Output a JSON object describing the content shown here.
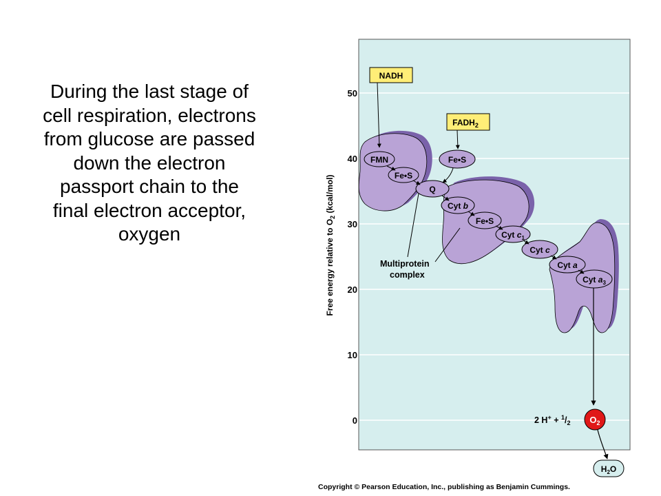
{
  "slide": {
    "lines": [
      "During the last stage of",
      "cell respiration, electrons",
      "from glucose are passed",
      "down the electron",
      "passport chain to the",
      "final electron acceptor,",
      "oxygen"
    ]
  },
  "diagram": {
    "y_axis": {
      "title_main": "Free energy relative to O",
      "title_sub": "2",
      "title_unit": " (kcal/mol)",
      "ticks": [
        "50",
        "40",
        "30",
        "20",
        "10",
        "0"
      ]
    },
    "boxes": {
      "nadh": "NADH",
      "fadh_main": "FADH",
      "fadh_sub": "2"
    },
    "carriers": {
      "fmn": "FMN",
      "fes1": "Fe•S",
      "fes_fad": "Fe•S",
      "q": "Q",
      "cyt_b_prefix": "Cyt ",
      "cyt_b_letter": "b",
      "fes2": "Fe•S",
      "cyt_c1_prefix": "Cyt ",
      "cyt_c1_letter": "c",
      "cyt_c1_sub": "1",
      "cyt_c_prefix": "Cyt ",
      "cyt_c_letter": "c",
      "cyt_a_prefix": "Cyt ",
      "cyt_a_letter": "a",
      "cyt_a3_prefix": "Cyt ",
      "cyt_a3_letter": "a",
      "cyt_a3_sub": "3"
    },
    "multiprotein_line1": "Multiprotein",
    "multiprotein_line2": "complex",
    "reaction": {
      "h": "2 H",
      "h_sup": "+",
      "plus": " + ",
      "half_num": "1",
      "half_slash": "/",
      "half_den": "2",
      "o": "O",
      "o_sub": "2"
    },
    "water": {
      "h": "H",
      "h_sub": "2",
      "o": "O"
    },
    "colors": {
      "panel": "#d6eeee",
      "complex_fill": "#b9a3d6",
      "complex_shadow": "#7a62aa",
      "yellow_box": "#ffee77",
      "oxygen_red": "#e01818"
    }
  },
  "copyright": "Copyright © Pearson Education, Inc., publishing as Benjamin Cummings."
}
